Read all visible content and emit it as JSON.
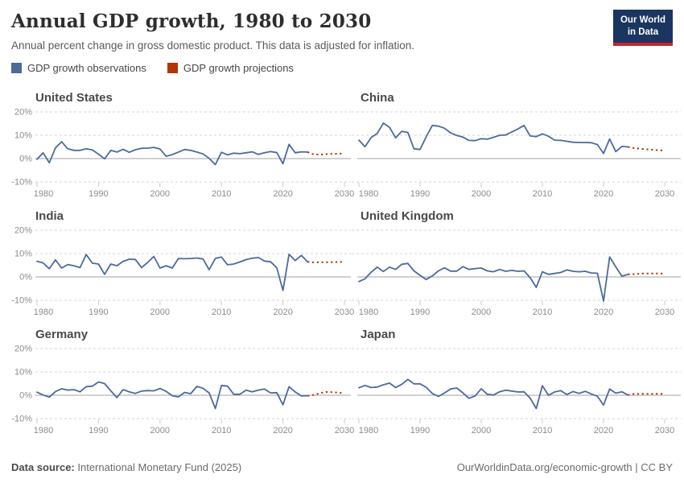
{
  "header": {
    "title": "Annual GDP growth, 1980 to 2030",
    "subtitle": "Annual percent change in gross domestic product. This data is adjusted for inflation.",
    "logo_line1": "Our World",
    "logo_line2": "in Data"
  },
  "legend": {
    "items": [
      {
        "label": "GDP growth observations",
        "color": "#4C6A9C"
      },
      {
        "label": "GDP growth projections",
        "color": "#B13507"
      }
    ]
  },
  "colors": {
    "observations_line": "#4C6A9C",
    "projections_line": "#B13507",
    "gridline": "#d6d6d6",
    "zero_line": "#a3a3a3",
    "axis_text": "#8c8c8c",
    "country_title": "#4a4a4a",
    "logo_bg": "#1a3560",
    "logo_bar": "#c2262e"
  },
  "axis": {
    "ylim": [
      -10,
      20
    ],
    "ytick_values": [
      20,
      10,
      0,
      -10
    ],
    "ytick_labels": [
      "20%",
      "10%",
      "0%",
      "-10%"
    ],
    "xticks": [
      1980,
      1990,
      2000,
      2010,
      2020,
      2030
    ],
    "x_start": 1980,
    "x_end": 2030,
    "observations_start_year": 1980,
    "projections_start_year": 2024
  },
  "chart_data": [
    {
      "type": "line",
      "title": "United States",
      "unit": "%",
      "observations": [
        -0.3,
        2.5,
        -1.8,
        4.6,
        7.2,
        4.2,
        3.5,
        3.5,
        4.2,
        3.7,
        1.9,
        -0.1,
        3.5,
        2.8,
        4.0,
        2.7,
        3.8,
        4.4,
        4.5,
        4.8,
        4.1,
        1.0,
        1.7,
        2.8,
        3.9,
        3.5,
        2.8,
        2.0,
        0.1,
        -2.6,
        2.7,
        1.6,
        2.3,
        2.1,
        2.5,
        2.9,
        1.8,
        2.5,
        3.0,
        2.6,
        -2.2,
        6.1,
        2.5,
        2.9,
        2.8
      ],
      "projections": [
        2.8,
        1.8,
        1.7,
        1.9,
        2.0,
        2.1,
        2.1
      ]
    },
    {
      "type": "line",
      "title": "China",
      "unit": "%",
      "observations": [
        7.9,
        5.1,
        9.0,
        10.8,
        15.2,
        13.4,
        8.9,
        11.7,
        11.2,
        4.2,
        3.9,
        9.3,
        14.2,
        13.9,
        13.0,
        11.0,
        9.9,
        9.2,
        7.8,
        7.7,
        8.5,
        8.3,
        9.1,
        10.0,
        10.1,
        11.4,
        12.7,
        14.2,
        9.7,
        9.4,
        10.6,
        9.6,
        7.9,
        7.8,
        7.4,
        7.0,
        6.9,
        6.9,
        6.8,
        6.0,
        2.2,
        8.4,
        3.0,
        5.2,
        5.0
      ],
      "projections": [
        5.0,
        4.5,
        4.2,
        4.0,
        3.8,
        3.6,
        3.4
      ]
    },
    {
      "type": "line",
      "title": "India",
      "unit": "%",
      "observations": [
        6.7,
        6.0,
        3.5,
        7.3,
        3.8,
        5.3,
        4.8,
        4.0,
        9.6,
        5.9,
        5.5,
        1.1,
        5.5,
        4.8,
        6.7,
        7.6,
        7.5,
        4.0,
        6.2,
        8.8,
        3.8,
        4.8,
        3.8,
        7.9,
        7.8,
        7.9,
        8.1,
        7.7,
        3.1,
        7.9,
        8.5,
        5.2,
        5.5,
        6.4,
        7.4,
        8.0,
        8.3,
        6.8,
        6.5,
        3.9,
        -5.8,
        9.7,
        7.0,
        9.2,
        6.5
      ],
      "projections": [
        6.5,
        6.2,
        6.3,
        6.3,
        6.3,
        6.4,
        6.4
      ]
    },
    {
      "type": "line",
      "title": "United Kingdom",
      "unit": "%",
      "observations": [
        -2.0,
        -0.8,
        2.0,
        4.2,
        2.3,
        4.2,
        3.2,
        5.4,
        5.8,
        2.6,
        0.7,
        -1.1,
        0.4,
        2.6,
        3.9,
        2.5,
        2.5,
        4.4,
        3.2,
        3.6,
        3.8,
        2.6,
        2.2,
        3.2,
        2.4,
        2.8,
        2.4,
        2.6,
        -0.3,
        -4.5,
        2.2,
        1.1,
        1.5,
        1.9,
        3.0,
        2.4,
        2.2,
        2.4,
        1.7,
        1.6,
        -10.3,
        8.6,
        4.3,
        0.3,
        1.1
      ],
      "projections": [
        1.1,
        1.2,
        1.4,
        1.5,
        1.5,
        1.5,
        1.4
      ]
    },
    {
      "type": "line",
      "title": "Germany",
      "unit": "%",
      "observations": [
        1.3,
        0.1,
        -0.8,
        1.6,
        2.8,
        2.2,
        2.4,
        1.5,
        3.7,
        3.9,
        5.7,
        5.0,
        1.9,
        -1.0,
        2.4,
        1.5,
        0.8,
        1.8,
        2.0,
        1.9,
        2.9,
        1.7,
        -0.2,
        -0.7,
        1.2,
        0.7,
        3.8,
        3.0,
        1.0,
        -5.7,
        4.2,
        3.9,
        0.4,
        0.4,
        2.2,
        1.5,
        2.2,
        2.7,
        1.0,
        1.1,
        -4.1,
        3.7,
        1.4,
        -0.3,
        -0.2
      ],
      "projections": [
        -0.2,
        0.1,
        0.9,
        1.4,
        1.3,
        1.1,
        0.8
      ]
    },
    {
      "type": "line",
      "title": "Japan",
      "unit": "%",
      "observations": [
        3.2,
        4.2,
        3.3,
        3.5,
        4.5,
        5.2,
        3.3,
        4.7,
        6.8,
        4.9,
        4.9,
        3.4,
        0.8,
        -0.5,
        1.0,
        2.7,
        3.1,
        1.0,
        -1.3,
        -0.3,
        2.8,
        0.4,
        0.1,
        1.5,
        2.2,
        1.8,
        1.4,
        1.5,
        -1.2,
        -5.7,
        4.1,
        0.0,
        1.4,
        2.0,
        0.3,
        1.6,
        0.8,
        1.7,
        0.6,
        -0.4,
        -4.2,
        2.7,
        0.9,
        1.5,
        0.1
      ],
      "projections": [
        0.1,
        0.6,
        0.6,
        0.6,
        0.6,
        0.6,
        0.6
      ]
    }
  ],
  "footer": {
    "datasource_label": "Data source:",
    "datasource_value": "International Monetary Fund (2025)",
    "credit": "OurWorldinData.org/economic-growth | CC BY"
  }
}
